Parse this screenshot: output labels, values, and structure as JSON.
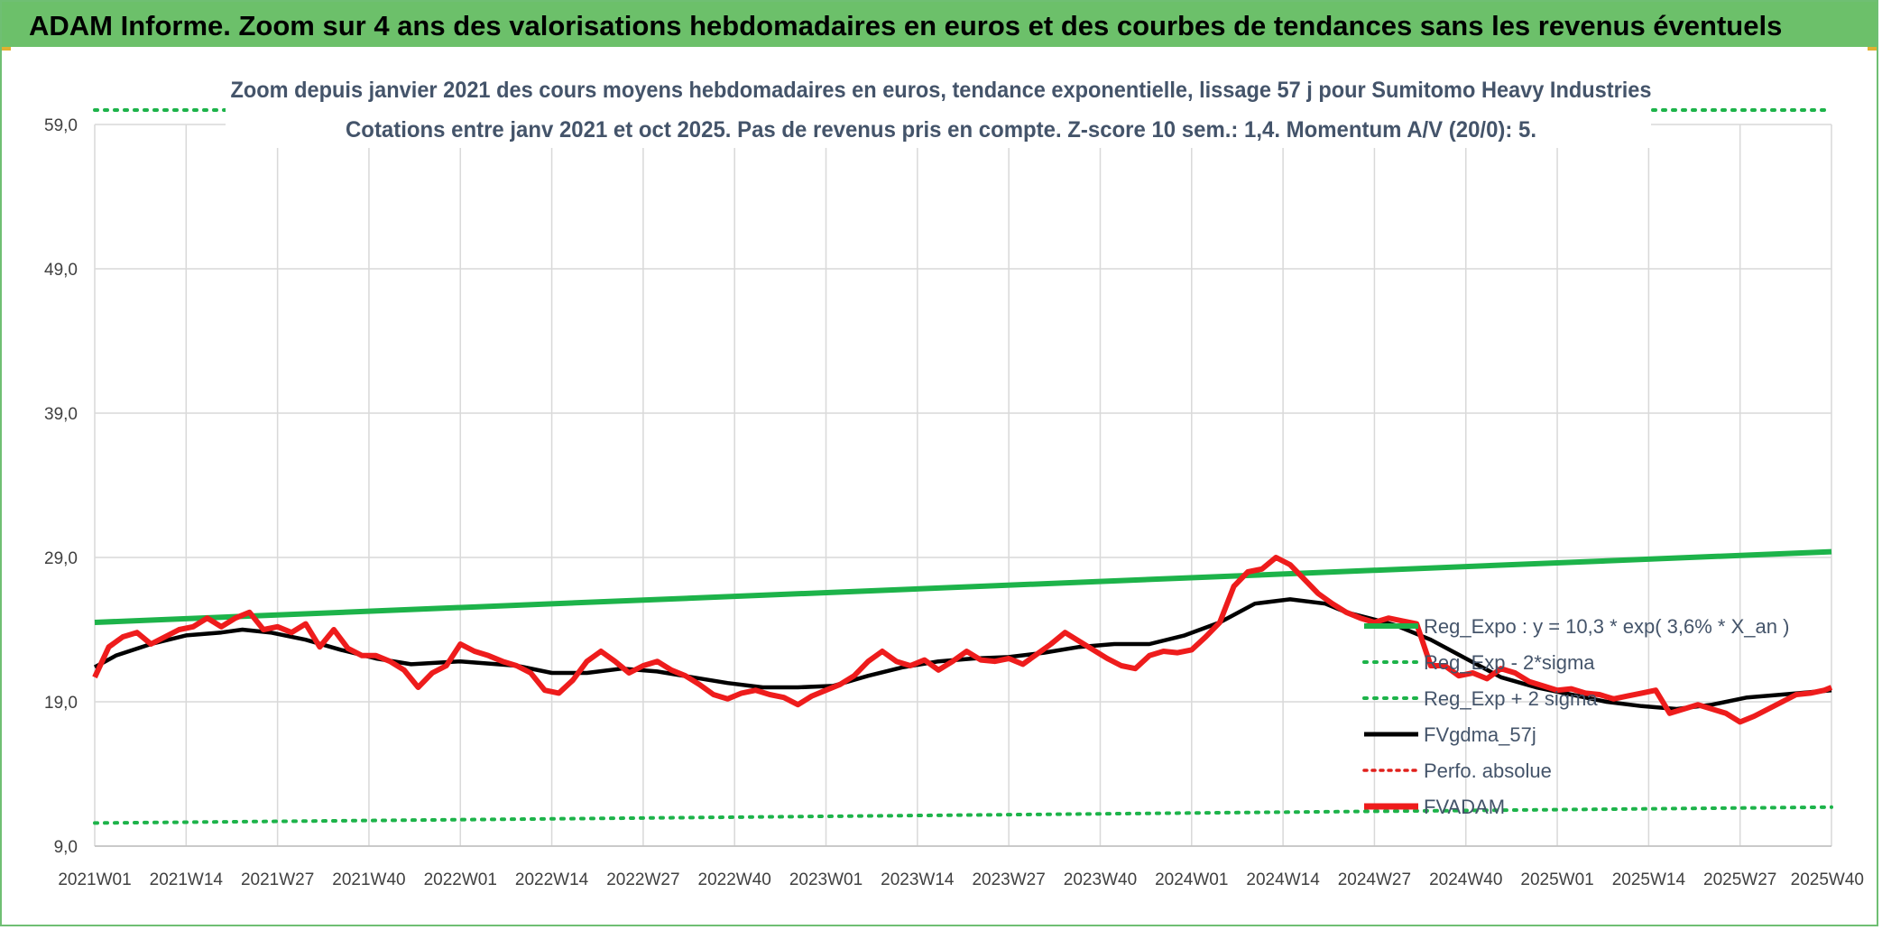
{
  "banner": {
    "title": "ADAM Informe. Zoom sur 4 ans des valorisations hebdomadaires en euros et des courbes de tendances sans les revenus éventuels"
  },
  "chart_data": {
    "type": "line",
    "title_line1": "Zoom depuis janvier 2021 des cours moyens hebdomadaires en euros, tendance exponentielle, lissage 57 j pour Sumitomo Heavy Industries",
    "title_line2": "Cotations entre janv 2021 et oct 2025. Pas de revenus pris en compte. Z-score 10 sem.: 1,4. Momentum A/V (20/0): 5.",
    "ylim": [
      9,
      59
    ],
    "y_ticks": [
      9,
      19,
      29,
      39,
      49,
      59
    ],
    "y_tick_labels": [
      "9,0",
      "19,0",
      "29,0",
      "39,0",
      "49,0",
      "59,0"
    ],
    "x_tick_labels": [
      "2021W01",
      "2021W14",
      "2021W27",
      "2021W40",
      "2022W01",
      "2022W14",
      "2022W27",
      "2022W40",
      "2023W01",
      "2023W14",
      "2023W27",
      "2023W40",
      "2024W01",
      "2024W14",
      "2024W27",
      "2024W40",
      "2025W01",
      "2025W14",
      "2025W27",
      "2025W40"
    ],
    "grid": true,
    "legend_position": "right",
    "colors": {
      "reg_expo": "#1db34a",
      "reg_sigma": "#1db34a",
      "fvgdma": "#000000",
      "perfo": "#e0201c",
      "fvadam": "#ee1c1c",
      "grid": "#d9d9d9",
      "axis_text": "#404040",
      "title_text": "#44546a"
    },
    "legend": [
      {
        "key": "reg_expo",
        "label": "Reg_Expo : y = 10,3 * exp( 3,6% *  X_an )"
      },
      {
        "key": "reg_minus",
        "label": "Reg_Exp - 2*sigma"
      },
      {
        "key": "reg_plus",
        "label": "Reg_Exp + 2 sigma"
      },
      {
        "key": "fvgdma",
        "label": "FVgdma_57j"
      },
      {
        "key": "perfo",
        "label": "Perfo. absolue"
      },
      {
        "key": "fvadam",
        "label": "FVADAM"
      }
    ],
    "series": [
      {
        "name": "Reg_Expo",
        "x": [
          0,
          247
        ],
        "values": [
          24.5,
          29.4
        ]
      },
      {
        "name": "Reg_Exp - 2*sigma",
        "x": [
          0,
          247
        ],
        "values": [
          10.6,
          11.7
        ]
      },
      {
        "name": "Reg_Exp + 2 sigma",
        "x": [
          0,
          247
        ],
        "values": [
          60.0,
          60.0
        ]
      },
      {
        "name": "FVgdma_57j",
        "x": [
          0,
          3,
          8,
          13,
          18,
          21,
          25,
          30,
          35,
          40,
          45,
          52,
          60,
          65,
          70,
          75,
          80,
          85,
          90,
          95,
          100,
          105,
          110,
          115,
          120,
          125,
          130,
          135,
          140,
          145,
          150,
          155,
          160,
          165,
          170,
          175,
          178,
          182,
          185,
          190,
          195,
          200,
          205,
          210,
          215,
          220,
          225,
          230,
          235,
          240,
          247
        ],
        "values": [
          21.4,
          22.2,
          23.0,
          23.6,
          23.8,
          24.0,
          23.8,
          23.3,
          22.6,
          22.0,
          21.6,
          21.8,
          21.5,
          21.0,
          21.0,
          21.3,
          21.1,
          20.7,
          20.3,
          20.0,
          20.0,
          20.1,
          20.8,
          21.4,
          21.8,
          22.0,
          22.1,
          22.4,
          22.8,
          23.0,
          23.0,
          23.6,
          24.5,
          25.8,
          26.1,
          25.8,
          25.2,
          24.7,
          24.3,
          23.3,
          22.0,
          20.7,
          20.0,
          19.5,
          19.0,
          18.7,
          18.5,
          18.8,
          19.3,
          19.5,
          19.8
        ]
      },
      {
        "name": "FVADAM",
        "x": [
          0,
          2,
          4,
          6,
          8,
          10,
          12,
          14,
          16,
          18,
          20,
          22,
          24,
          26,
          28,
          30,
          32,
          34,
          36,
          38,
          40,
          42,
          44,
          46,
          48,
          50,
          52,
          54,
          56,
          58,
          60,
          62,
          64,
          66,
          68,
          70,
          72,
          74,
          76,
          78,
          80,
          82,
          84,
          86,
          88,
          90,
          92,
          94,
          96,
          98,
          100,
          102,
          104,
          106,
          108,
          110,
          112,
          114,
          116,
          118,
          120,
          122,
          124,
          126,
          128,
          130,
          132,
          134,
          136,
          138,
          140,
          142,
          144,
          146,
          148,
          150,
          152,
          154,
          156,
          158,
          160,
          162,
          164,
          166,
          168,
          170,
          172,
          174,
          176,
          178,
          180,
          182,
          184,
          186,
          188,
          190,
          192,
          194,
          196,
          198,
          200,
          202,
          204,
          206,
          208,
          210,
          212,
          214,
          216,
          218,
          220,
          222,
          224,
          226,
          228,
          230,
          232,
          234,
          236,
          238,
          240,
          242,
          244,
          246,
          247
        ],
        "values": [
          20.7,
          22.8,
          23.5,
          23.8,
          23.0,
          23.5,
          24.0,
          24.2,
          24.8,
          24.2,
          24.8,
          25.2,
          24.0,
          24.2,
          23.8,
          24.4,
          22.8,
          24.0,
          22.7,
          22.2,
          22.2,
          21.8,
          21.2,
          20.0,
          21.0,
          21.5,
          23.0,
          22.5,
          22.2,
          21.8,
          21.5,
          21.0,
          19.8,
          19.6,
          20.5,
          21.8,
          22.5,
          21.8,
          21.0,
          21.5,
          21.8,
          21.2,
          20.8,
          20.2,
          19.5,
          19.2,
          19.6,
          19.8,
          19.5,
          19.3,
          18.8,
          19.4,
          19.8,
          20.2,
          20.8,
          21.8,
          22.5,
          21.8,
          21.5,
          21.9,
          21.2,
          21.8,
          22.5,
          21.9,
          21.8,
          22.0,
          21.6,
          22.3,
          23.0,
          23.8,
          23.2,
          22.6,
          22.0,
          21.5,
          21.3,
          22.2,
          22.5,
          22.4,
          22.6,
          23.5,
          24.5,
          27.0,
          28.0,
          28.2,
          29.0,
          28.5,
          27.5,
          26.5,
          25.8,
          25.2,
          24.8,
          24.5,
          24.8,
          24.6,
          24.4,
          21.5,
          21.5,
          20.8,
          21.0,
          20.6,
          21.3,
          21.0,
          20.4,
          20.1,
          19.8,
          19.9,
          19.6,
          19.5,
          19.2,
          19.4,
          19.6,
          19.8,
          18.2,
          18.5,
          18.8,
          18.5,
          18.2,
          17.6,
          18.0,
          18.5,
          19.0,
          19.5,
          19.6,
          19.8,
          20.0
        ]
      }
    ]
  }
}
